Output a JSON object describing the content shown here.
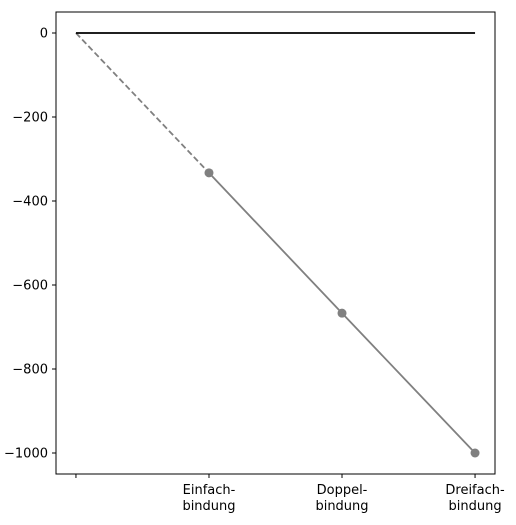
{
  "chart_data": {
    "type": "line",
    "categories": [
      "",
      "Einfach-\nbindung",
      "Doppel-\nbindung",
      "Dreifach-\nbindung"
    ],
    "x": [
      0,
      1,
      2,
      3
    ],
    "series": [
      {
        "values": [
          0,
          -333,
          -667,
          -1000
        ],
        "style": "dashed-then-solid",
        "color": "#808080",
        "markers": [
          false,
          true,
          true,
          true
        ]
      },
      {
        "values": [
          0,
          0,
          0,
          0
        ],
        "style": "solid",
        "color": "#000000",
        "markers": [
          false,
          false,
          false,
          false
        ]
      }
    ],
    "yticks": [
      0,
      -200,
      -400,
      -600,
      -800,
      -1000
    ],
    "ytick_labels": [
      "0",
      "−200",
      "−400",
      "−600",
      "−800",
      "−1000"
    ],
    "ylim": [
      -1050,
      50
    ],
    "xlim": [
      -0.15,
      3.15
    ],
    "title": "",
    "xlabel": "",
    "ylabel": "",
    "grid": false
  }
}
